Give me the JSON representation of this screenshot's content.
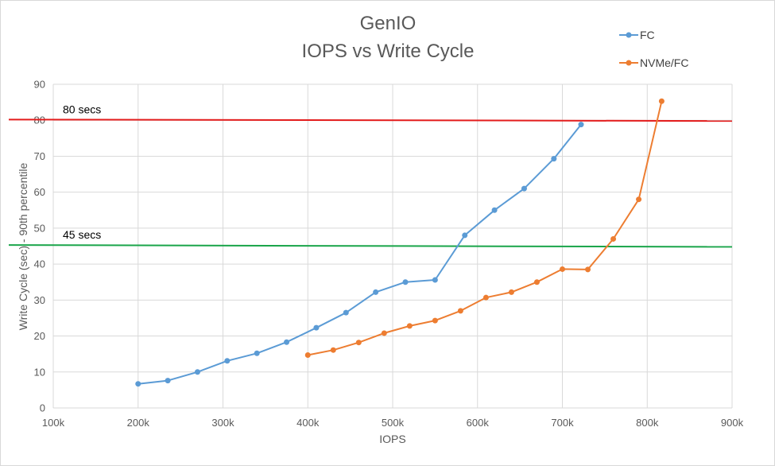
{
  "chart_data": {
    "type": "line",
    "title": [
      "GenIO",
      "IOPS vs Write Cycle"
    ],
    "xlabel": "IOPS",
    "ylabel": "Write Cycle (sec) - 90th percentile",
    "xlim": [
      100000,
      900000
    ],
    "ylim": [
      0,
      90
    ],
    "x_ticks": [
      100000,
      200000,
      300000,
      400000,
      500000,
      600000,
      700000,
      800000,
      900000
    ],
    "x_tick_labels": [
      "100k",
      "200k",
      "300k",
      "400k",
      "500k",
      "600k",
      "700k",
      "800k",
      "900k"
    ],
    "y_ticks": [
      0,
      10,
      20,
      30,
      40,
      50,
      60,
      70,
      80,
      90
    ],
    "y_tick_labels": [
      "0",
      "10",
      "20",
      "30",
      "40",
      "50",
      "60",
      "70",
      "80",
      "90"
    ],
    "grid": true,
    "legend_position": "top-right",
    "series": [
      {
        "name": "FC",
        "color": "#5b9bd5",
        "x": [
          200000,
          235000,
          270000,
          305000,
          340000,
          375000,
          410000,
          445000,
          480000,
          515000,
          550000,
          585000,
          620000,
          655000,
          690000,
          722000
        ],
        "y": [
          6.7,
          7.6,
          10.0,
          13.1,
          15.2,
          18.3,
          22.3,
          26.5,
          32.2,
          35.0,
          35.6,
          48.0,
          55.0,
          61.0,
          69.3,
          78.8
        ]
      },
      {
        "name": "NVMe/FC",
        "color": "#ed7d31",
        "x": [
          400000,
          430000,
          460000,
          490000,
          520000,
          550000,
          580000,
          610000,
          640000,
          670000,
          700000,
          730000,
          760000,
          790000,
          817000
        ],
        "y": [
          14.7,
          16.1,
          18.2,
          20.8,
          22.8,
          24.3,
          27.0,
          30.7,
          32.2,
          35.0,
          38.6,
          38.5,
          47.0,
          58.0,
          85.3
        ]
      }
    ],
    "reference_lines": [
      {
        "label": "80 secs",
        "color": "#e31c1c",
        "y_start": 80.2,
        "y_end": 79.8
      },
      {
        "label": "45 secs",
        "color": "#1aa54a",
        "y_start": 45.3,
        "y_end": 44.8
      }
    ]
  }
}
